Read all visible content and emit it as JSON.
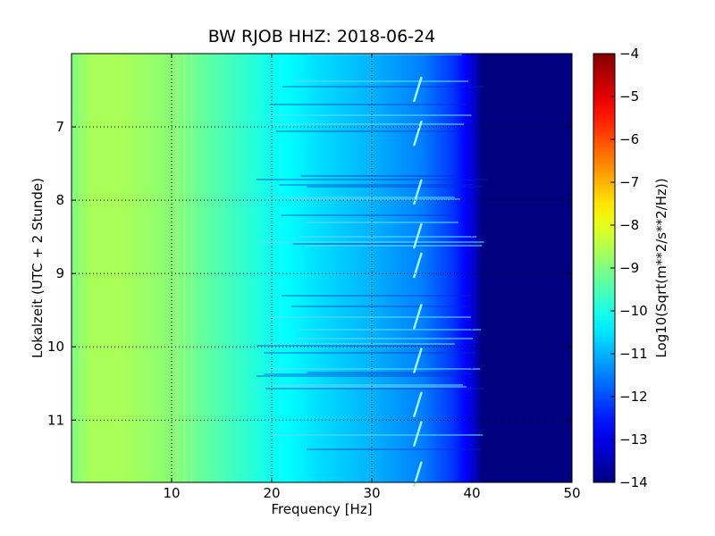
{
  "chart_data": {
    "type": "heatmap",
    "title": "BW RJOB HHZ: 2018-06-24",
    "xlabel": "Frequency [Hz]",
    "ylabel": "Lokalzeit (UTC + 2 Stunde)",
    "colorbar_label": "Log10(Sqrt(m**2/s**2/Hz))",
    "xlim": [
      0,
      50
    ],
    "ylim": [
      6.0,
      11.85
    ],
    "y_inverted": true,
    "xticks": [
      10,
      20,
      30,
      40,
      50
    ],
    "yticks": [
      7,
      8,
      9,
      10,
      11
    ],
    "clim": [
      -14,
      -4
    ],
    "colorbar_ticks": [
      -4,
      -5,
      -6,
      -7,
      -8,
      -9,
      -10,
      -11,
      -12,
      -13,
      -14
    ],
    "colormap": "jet",
    "grid": true,
    "spectral_profile": {
      "frequency_hz": [
        0,
        2,
        5,
        10,
        15,
        20,
        25,
        30,
        35,
        38,
        40,
        41,
        45,
        50
      ],
      "value": [
        -9.0,
        -8.6,
        -8.6,
        -8.9,
        -9.5,
        -10.1,
        -10.6,
        -11.0,
        -11.5,
        -12.2,
        -13.0,
        -14.0,
        -14.0,
        -14.0
      ]
    },
    "transient_lines": {
      "frequency_hz": 34.5,
      "times": [
        6.5,
        7.1,
        7.9,
        8.5,
        8.9,
        9.6,
        10.2,
        10.8,
        11.2,
        11.75
      ]
    }
  }
}
